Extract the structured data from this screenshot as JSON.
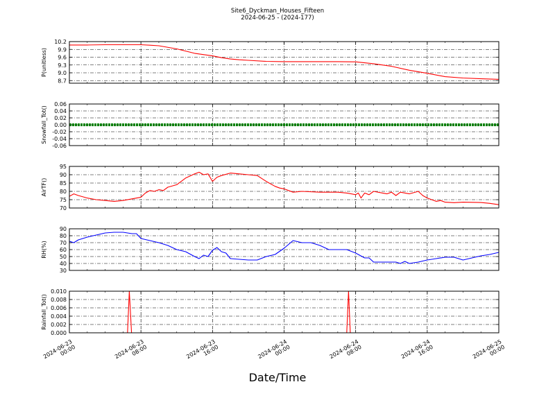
{
  "figure": {
    "title": "Site6_Dyckman_Houses_Fifteen",
    "subtitle": "2024-06-25 - (2024-177)",
    "xlabel": "Date/Time"
  },
  "chart_data": [
    {
      "type": "line",
      "ylabel": "P(unitless)",
      "ylim": [
        8.6,
        10.2
      ],
      "yticks": [
        "10.2",
        "9.9",
        "9.6",
        "9.3",
        "9.0",
        "8.7"
      ],
      "ytick_values": [
        10.2,
        9.9,
        9.6,
        9.3,
        9.0,
        8.7
      ],
      "grid": true,
      "color": "#ff0000",
      "x_hours": [
        0,
        2,
        4,
        6,
        8,
        9,
        10,
        12,
        14,
        16,
        17,
        18,
        19,
        20,
        22,
        24,
        26,
        28,
        30,
        32,
        34,
        36,
        38,
        40,
        42,
        44,
        46,
        48
      ],
      "y": [
        10.07,
        10.07,
        10.08,
        10.08,
        10.08,
        10.06,
        10.04,
        9.92,
        9.75,
        9.65,
        9.58,
        9.53,
        9.5,
        9.48,
        9.44,
        9.43,
        9.43,
        9.43,
        9.43,
        9.42,
        9.35,
        9.25,
        9.1,
        8.98,
        8.85,
        8.8,
        8.77,
        8.75
      ]
    },
    {
      "type": "line",
      "ylabel": "Snowfall_Tot()",
      "ylim": [
        -0.06,
        0.06
      ],
      "yticks": [
        "0.06",
        "0.04",
        "0.02",
        "0.00",
        "-0.02",
        "-0.04",
        "-0.06"
      ],
      "ytick_values": [
        0.06,
        0.04,
        0.02,
        0.0,
        -0.02,
        -0.04,
        -0.06
      ],
      "grid": true,
      "color": "#008000",
      "x_hours": [
        0,
        48
      ],
      "y": [
        0.0,
        0.0
      ]
    },
    {
      "type": "line",
      "ylabel": "AirTF()",
      "ylim": [
        70,
        95
      ],
      "yticks": [
        "95",
        "90",
        "85",
        "80",
        "75",
        "70"
      ],
      "ytick_values": [
        95,
        90,
        85,
        80,
        75,
        70
      ],
      "grid": true,
      "color": "#ff0000",
      "x_hours": [
        0,
        0.5,
        1,
        2,
        3,
        4,
        5,
        6,
        7,
        8,
        8.5,
        9,
        9.5,
        10,
        10.5,
        11,
        12,
        13,
        14,
        14.5,
        15,
        15.5,
        16,
        16.5,
        17,
        18,
        19,
        20,
        21,
        22,
        23,
        23.5,
        24,
        25,
        26,
        28,
        30,
        31,
        32,
        32.3,
        32.6,
        33,
        33.5,
        34,
        35,
        35.5,
        36,
        36.5,
        37,
        38,
        39,
        39.5,
        40,
        40.5,
        41,
        41.5,
        42,
        43,
        44,
        46,
        47,
        48
      ],
      "y": [
        77,
        78.5,
        77.5,
        76,
        75,
        74.5,
        74,
        74.5,
        75.5,
        76.5,
        79,
        80.5,
        80,
        81,
        80.5,
        82.5,
        84,
        88,
        90.5,
        91.5,
        90,
        90.5,
        86,
        88.5,
        89.5,
        91,
        90.5,
        90,
        89.5,
        86,
        83,
        82,
        81.5,
        79.5,
        80,
        79.5,
        79.5,
        79,
        78,
        79,
        76,
        79,
        78,
        80,
        79,
        78.5,
        79.5,
        77.5,
        79.5,
        78.5,
        80,
        77.5,
        76,
        75,
        74,
        74.5,
        73.5,
        73.2,
        73.5,
        73.3,
        72.8,
        72
      ]
    },
    {
      "type": "line",
      "ylabel": "RH(%)",
      "ylim": [
        30,
        90
      ],
      "yticks": [
        "90",
        "80",
        "70",
        "60",
        "50",
        "40",
        "30"
      ],
      "ytick_values": [
        90,
        80,
        70,
        60,
        50,
        40,
        30
      ],
      "grid": true,
      "color": "#0000ff",
      "x_hours": [
        0,
        0.5,
        1,
        2,
        3,
        4,
        5,
        6,
        7,
        7.5,
        8,
        9,
        10,
        11,
        12,
        13,
        14,
        14.5,
        15,
        15.5,
        16,
        16.5,
        17,
        17.5,
        18,
        19,
        20,
        21,
        22,
        23,
        24,
        25,
        26,
        27,
        28,
        29,
        30,
        31,
        32,
        33,
        33.5,
        34,
        35,
        36,
        36.5,
        37,
        37.5,
        38,
        39,
        40,
        41,
        42,
        43,
        44,
        45,
        46,
        47,
        48
      ],
      "y": [
        72,
        70,
        74,
        78,
        81,
        84,
        85,
        85,
        83,
        83,
        76,
        73,
        70,
        66,
        60,
        57,
        50,
        47,
        52,
        50,
        59,
        63,
        57,
        55,
        47,
        46,
        45,
        45,
        50,
        53,
        62,
        73,
        70,
        70,
        66,
        60,
        60,
        60,
        55,
        48,
        48,
        42,
        42,
        42,
        42,
        40,
        43,
        40,
        42,
        45,
        47,
        49,
        49,
        45,
        48,
        51,
        53,
        56
      ]
    },
    {
      "type": "line",
      "ylabel": "Rainfall_Tot()",
      "ylim": [
        0,
        0.01
      ],
      "yticks": [
        "0.010",
        "0.008",
        "0.006",
        "0.004",
        "0.002",
        "0.000"
      ],
      "ytick_values": [
        0.01,
        0.008,
        0.006,
        0.004,
        0.002,
        0.0
      ],
      "grid": true,
      "color": "#ff0000",
      "x_hours": [
        0,
        6.5,
        6.7,
        6.95,
        7.2,
        31,
        31.2,
        31.4,
        31.6,
        48
      ],
      "y": [
        0,
        0,
        0.01,
        0,
        0,
        0,
        0.01,
        0,
        0,
        0
      ]
    }
  ],
  "x_axis": {
    "tick_hours": [
      0,
      8,
      16,
      24,
      32,
      40,
      48
    ],
    "tick_labels": [
      [
        "2024-06-23",
        "00:00"
      ],
      [
        "2024-06-23",
        "08:00"
      ],
      [
        "2024-06-23",
        "16:00"
      ],
      [
        "2024-06-24",
        "00:00"
      ],
      [
        "2024-06-24",
        "08:00"
      ],
      [
        "2024-06-24",
        "16:00"
      ],
      [
        "2024-06-25",
        "00:00"
      ]
    ],
    "minor_tick_hours": [
      2,
      4,
      6,
      10,
      12,
      14,
      18,
      20,
      22,
      26,
      28,
      30,
      34,
      36,
      38,
      42,
      44,
      46
    ]
  }
}
